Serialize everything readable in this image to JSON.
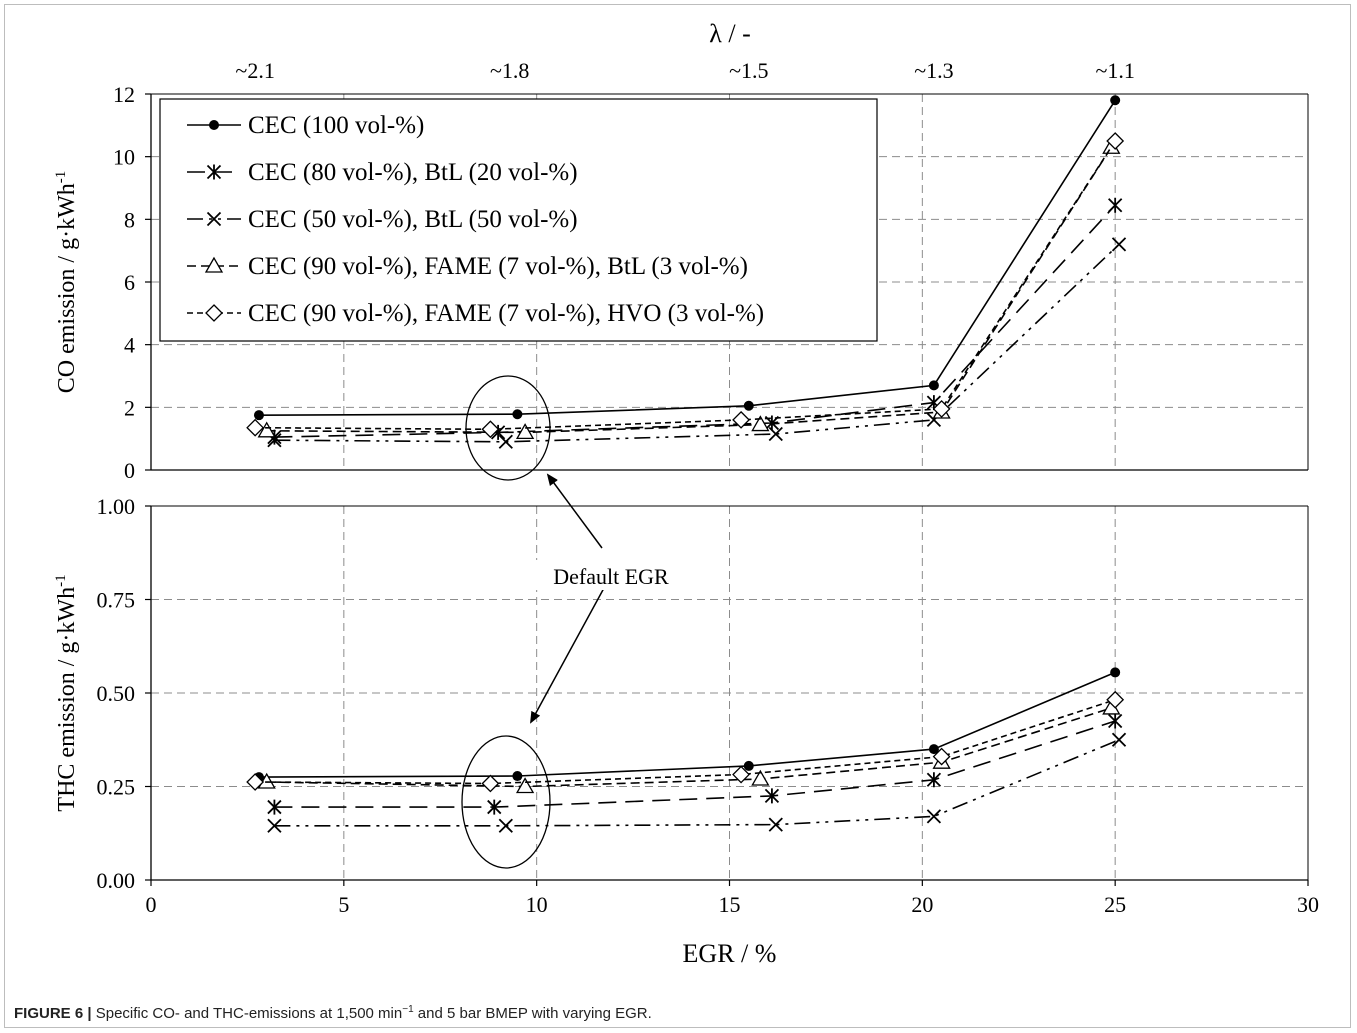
{
  "caption": {
    "label": "FIGURE 6 |",
    "text": "Specific CO- and THC-emissions at 1,500 min",
    "exponent": "−1",
    "text_after": " and 5 bar BMEP with varying EGR."
  },
  "annotation": {
    "text": "Default EGR"
  },
  "chart_data": [
    {
      "type": "line",
      "panel": "top",
      "ylabel": "CO emission / g·kWh",
      "ylabel_exponent": "-1",
      "ylim": [
        0,
        12
      ],
      "yticks": [
        0,
        2,
        4,
        6,
        8,
        10,
        12
      ],
      "ytick_labels": [
        "0",
        "2",
        "4",
        "6",
        "8",
        "10",
        "12"
      ],
      "xlim": [
        0,
        30
      ],
      "grid": true,
      "top_axis": {
        "label": "λ / -",
        "ticks": [
          {
            "x": 2.7,
            "label": "~2.1"
          },
          {
            "x": 9.3,
            "label": "~1.8"
          },
          {
            "x": 15.5,
            "label": "~1.5"
          },
          {
            "x": 20.3,
            "label": "~1.3"
          },
          {
            "x": 25.0,
            "label": "~1.1"
          }
        ]
      },
      "legend_position": "top-left",
      "series": [
        {
          "name": "CEC (100 vol-%)",
          "marker": "dot",
          "dash": "solid",
          "x": [
            2.8,
            9.5,
            15.5,
            20.3,
            25.0
          ],
          "y": [
            1.75,
            1.78,
            2.05,
            2.7,
            11.8
          ]
        },
        {
          "name": "CEC (80 vol-%), BtL (20 vol-%)",
          "marker": "asterisk",
          "dash": "long-dash",
          "x": [
            3.2,
            9.0,
            16.1,
            20.3,
            25.0
          ],
          "y": [
            1.05,
            1.2,
            1.5,
            2.15,
            8.45
          ]
        },
        {
          "name": "CEC (50 vol-%), BtL (50 vol-%)",
          "marker": "cross",
          "dash": "dash-dot-dot",
          "x": [
            3.2,
            9.2,
            16.2,
            20.3,
            25.1
          ],
          "y": [
            0.95,
            0.9,
            1.15,
            1.6,
            7.2
          ]
        },
        {
          "name": "CEC (90 vol-%), FAME (7 vol-%), BtL (3 vol-%)",
          "marker": "triangle",
          "dash": "dash",
          "x": [
            3.0,
            9.7,
            15.8,
            20.5,
            24.9
          ],
          "y": [
            1.25,
            1.2,
            1.45,
            1.85,
            10.3
          ]
        },
        {
          "name": "CEC (90 vol-%), FAME (7 vol-%), HVO (3 vol-%)",
          "marker": "diamond",
          "dash": "short-dash",
          "x": [
            2.7,
            8.8,
            15.3,
            20.5,
            25.0
          ],
          "y": [
            1.35,
            1.3,
            1.6,
            1.95,
            10.5
          ]
        }
      ]
    },
    {
      "type": "line",
      "panel": "bottom",
      "ylabel": "THC emission / g·kWh",
      "ylabel_exponent": "-1",
      "ylim": [
        0,
        1
      ],
      "yticks": [
        0,
        0.25,
        0.5,
        0.75,
        1.0
      ],
      "ytick_labels": [
        "0.00",
        "0.25",
        "0.50",
        "0.75",
        "1.00"
      ],
      "xlabel": "EGR / %",
      "xlim": [
        0,
        30
      ],
      "xticks": [
        0,
        5,
        10,
        15,
        20,
        25,
        30
      ],
      "xtick_labels": [
        "0",
        "5",
        "10",
        "15",
        "20",
        "25",
        "30"
      ],
      "grid": true,
      "series": [
        {
          "name": "CEC (100 vol-%)",
          "marker": "dot",
          "dash": "solid",
          "x": [
            2.8,
            9.5,
            15.5,
            20.3,
            25.0
          ],
          "y": [
            0.275,
            0.278,
            0.305,
            0.35,
            0.555
          ]
        },
        {
          "name": "CEC (80 vol-%), BtL (20 vol-%)",
          "marker": "asterisk",
          "dash": "long-dash",
          "x": [
            3.2,
            8.9,
            16.1,
            20.3,
            25.0
          ],
          "y": [
            0.195,
            0.195,
            0.225,
            0.268,
            0.425
          ]
        },
        {
          "name": "CEC (50 vol-%), BtL (50 vol-%)",
          "marker": "cross",
          "dash": "dash-dot-dot",
          "x": [
            3.2,
            9.2,
            16.2,
            20.3,
            25.1
          ],
          "y": [
            0.145,
            0.145,
            0.148,
            0.17,
            0.375
          ]
        },
        {
          "name": "CEC (90 vol-%), FAME (7 vol-%), BtL (3 vol-%)",
          "marker": "triangle",
          "dash": "dash",
          "x": [
            3.0,
            9.7,
            15.8,
            20.5,
            24.9
          ],
          "y": [
            0.262,
            0.25,
            0.27,
            0.315,
            0.46
          ]
        },
        {
          "name": "CEC (90 vol-%), FAME (7 vol-%), HVO (3 vol-%)",
          "marker": "diamond",
          "dash": "short-dash",
          "x": [
            2.7,
            8.8,
            15.3,
            20.5,
            25.0
          ],
          "y": [
            0.262,
            0.258,
            0.282,
            0.33,
            0.482
          ]
        }
      ]
    }
  ]
}
